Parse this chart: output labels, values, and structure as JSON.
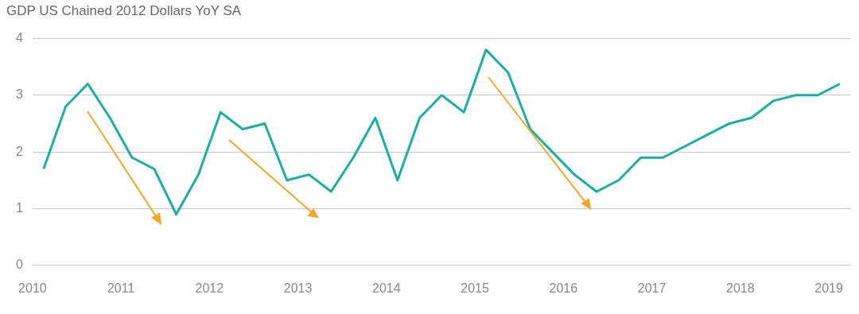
{
  "chart_data": {
    "type": "line",
    "title": "GDP US Chained 2012 Dollars YoY SA",
    "x": [
      2010.125,
      2010.375,
      2010.625,
      2010.875,
      2011.125,
      2011.375,
      2011.625,
      2011.875,
      2012.125,
      2012.375,
      2012.625,
      2012.875,
      2013.125,
      2013.375,
      2013.625,
      2013.875,
      2014.125,
      2014.375,
      2014.625,
      2014.875,
      2015.125,
      2015.375,
      2015.625,
      2015.875,
      2016.125,
      2016.375,
      2016.625,
      2016.875,
      2017.125,
      2017.375,
      2017.625,
      2017.875,
      2018.125,
      2018.375,
      2018.625,
      2018.875,
      2019.125
    ],
    "series": [
      {
        "color": "#1aaea8",
        "values": [
          1.7,
          2.8,
          3.2,
          2.6,
          1.9,
          1.7,
          0.9,
          1.6,
          2.7,
          2.4,
          2.5,
          1.5,
          1.6,
          1.3,
          1.9,
          2.6,
          1.5,
          2.6,
          3.0,
          2.7,
          3.8,
          3.4,
          2.4,
          2.0,
          1.6,
          1.3,
          1.5,
          1.9,
          1.9,
          2.1,
          2.3,
          2.5,
          2.6,
          2.9,
          3.0,
          3.0,
          3.2
        ]
      }
    ],
    "xlim": [
      2010,
      2019.25
    ],
    "xticks": [
      2010,
      2011,
      2012,
      2013,
      2014,
      2015,
      2016,
      2017,
      2018,
      2019
    ],
    "ylim": [
      0,
      4
    ],
    "yticks": [
      0,
      1,
      2,
      3,
      4
    ],
    "grid": "y",
    "legend": false,
    "marker": "none",
    "line_style": "solid"
  }
}
